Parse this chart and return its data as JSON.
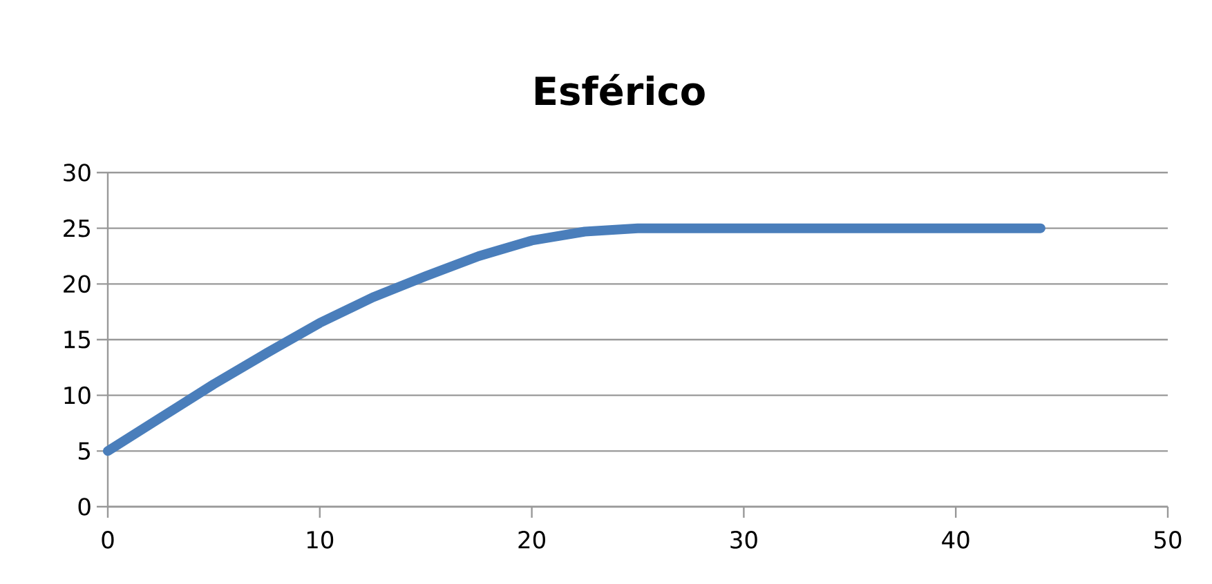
{
  "chart_data": {
    "type": "line",
    "title": "Esférico",
    "x": [
      0,
      2.5,
      5,
      7.5,
      10,
      12.5,
      15,
      17.5,
      20,
      22.5,
      25,
      30,
      35,
      40,
      44
    ],
    "series": [
      {
        "color": "#4a7ebb",
        "values": [
          5,
          8.0,
          11.0,
          13.8,
          16.5,
          18.8,
          20.7,
          22.5,
          23.9,
          24.7,
          25,
          25,
          25,
          25,
          25
        ]
      }
    ],
    "xlim": [
      0,
      50
    ],
    "ylim": [
      0,
      30
    ],
    "xticks": [
      0,
      10,
      20,
      30,
      40,
      50
    ],
    "yticks": [
      0,
      5,
      10,
      15,
      20,
      25,
      30
    ],
    "grid": "y",
    "marker": "none",
    "line_style": "solid"
  }
}
